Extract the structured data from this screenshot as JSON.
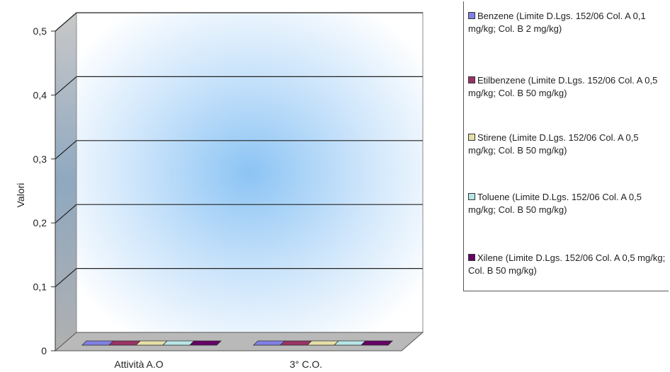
{
  "chart_data": {
    "type": "bar",
    "ylabel": "Valori",
    "ylim": [
      0,
      0.5
    ],
    "yticks": [
      "0",
      "0,1",
      "0,2",
      "0,3",
      "0,4",
      "0,5"
    ],
    "categories": [
      "Attività A.O",
      "3° C.O."
    ],
    "series": [
      {
        "name": "Benzene (Limite D.Lgs. 152/06 Col. A 0,1 mg/kg; Col. B 2 mg/kg)",
        "color": "#8080e6",
        "values": [
          0,
          0
        ]
      },
      {
        "name": "Etilbenzene (Limite D.Lgs. 152/06 Col. A 0,5 mg/kg; Col. B 50 mg/kg)",
        "color": "#993366",
        "values": [
          0,
          0
        ]
      },
      {
        "name": "Stirene (Limite D.Lgs. 152/06 Col. A 0,5 mg/kg; Col. B 50 mg/kg)",
        "color": "#e6e0a8",
        "values": [
          0,
          0
        ]
      },
      {
        "name": "Toluene (Limite D.Lgs. 152/06 Col. A 0,5 mg/kg; Col. B 50 mg/kg)",
        "color": "#b8e6e6",
        "values": [
          0,
          0
        ]
      },
      {
        "name": "Xilene (Limite D.Lgs. 152/06 Col. A 0,5 mg/kg; Col. B 50 mg/kg)",
        "color": "#660066",
        "values": [
          0,
          0
        ]
      }
    ],
    "grid": true,
    "legend_position": "right"
  }
}
